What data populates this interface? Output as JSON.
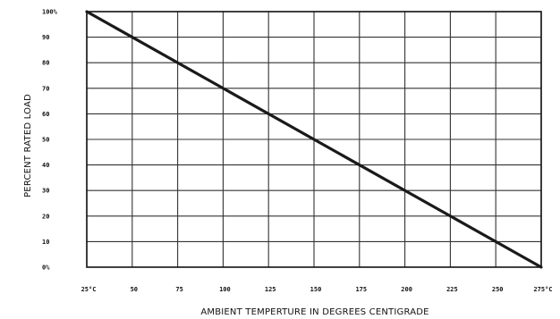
{
  "chart_data": {
    "type": "line",
    "title": "",
    "xlabel": "AMBIENT TEMPERTURE IN DEGREES CENTIGRADE",
    "ylabel": "PERCENT RATED LOAD",
    "x_tick_labels": [
      "25°C",
      "50",
      "75",
      "100",
      "125",
      "150",
      "175",
      "200",
      "225",
      "250",
      "275°C"
    ],
    "y_tick_labels": [
      "0%",
      "10",
      "20",
      "30",
      "40",
      "50",
      "60",
      "70",
      "80",
      "90",
      "100%"
    ],
    "x_ticks": [
      25,
      50,
      75,
      100,
      125,
      150,
      175,
      200,
      225,
      250,
      275
    ],
    "y_ticks": [
      0,
      10,
      20,
      30,
      40,
      50,
      60,
      70,
      80,
      90,
      100
    ],
    "xlim": [
      25,
      275
    ],
    "ylim": [
      0,
      100
    ],
    "grid": true,
    "series": [
      {
        "x": [
          25,
          275
        ],
        "y": [
          100,
          0
        ]
      }
    ],
    "colors": {
      "line": "#1a1a1a",
      "grid": "#333333",
      "background": "#ffffff"
    }
  }
}
